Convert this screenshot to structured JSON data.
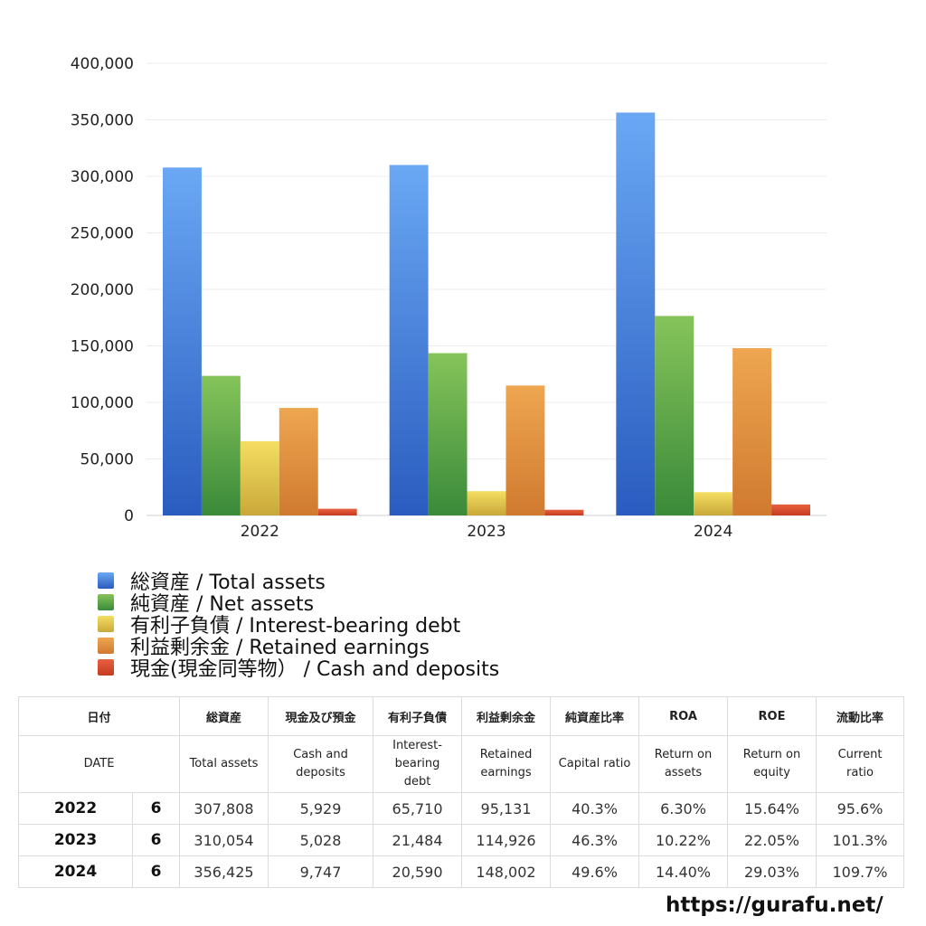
{
  "chart_data": {
    "type": "bar",
    "categories": [
      "2022",
      "2023",
      "2024"
    ],
    "ylim": [
      0,
      400000
    ],
    "yticks": [
      "0",
      "50,000",
      "100,000",
      "150,000",
      "200,000",
      "250,000",
      "300,000",
      "350,000",
      "400,000"
    ],
    "grid": true,
    "legend_position": "bottom",
    "series": [
      {
        "name": "総資産 / Total assets",
        "values": [
          307808,
          310054,
          356425
        ],
        "color": "#3f7fdd",
        "light": "#6aa8f4",
        "dark": "#2a5cbf"
      },
      {
        "name": "純資産 / Net assets",
        "values": [
          123500,
          143600,
          176500
        ],
        "color": "#5aa84a",
        "light": "#86c45a",
        "dark": "#3a8a3a"
      },
      {
        "name": "有利子負債 / Interest-bearing debt",
        "values": [
          65710,
          21484,
          20590
        ],
        "color": "#e5c84a",
        "light": "#f4de62",
        "dark": "#c9a83a"
      },
      {
        "name": "利益剰余金 / Retained earnings",
        "values": [
          95131,
          114926,
          148002
        ],
        "color": "#e0903a",
        "light": "#eea650",
        "dark": "#d07a30"
      },
      {
        "name": "現金(現金同等物）  /  Cash and deposits",
        "values": [
          5929,
          5028,
          9747
        ],
        "color": "#d84a2a",
        "light": "#e86040",
        "dark": "#c63a20"
      }
    ]
  },
  "table": {
    "headers_jp": [
      "日付",
      "総資産",
      "現金及び預金",
      "有利子負債",
      "利益剰余金",
      "純資産比率",
      "ROA",
      "ROE",
      "流動比率"
    ],
    "headers_en": [
      "DATE",
      "Total assets",
      "Cash and deposits",
      "Interest-bearing debt",
      "Retained earnings",
      "Capital ratio",
      "Return on assets",
      "Return on equity",
      "Current ratio"
    ],
    "rows": [
      {
        "year": "2022",
        "month": "6",
        "total_assets": "307,808",
        "cash": "5,929",
        "debt": "65,710",
        "retained": "95,131",
        "capital_ratio": "40.3%",
        "roa": "6.30%",
        "roe": "15.64%",
        "current_ratio": "95.6%"
      },
      {
        "year": "2023",
        "month": "6",
        "total_assets": "310,054",
        "cash": "5,028",
        "debt": "21,484",
        "retained": "114,926",
        "capital_ratio": "46.3%",
        "roa": "10.22%",
        "roe": "22.05%",
        "current_ratio": "101.3%"
      },
      {
        "year": "2024",
        "month": "6",
        "total_assets": "356,425",
        "cash": "9,747",
        "debt": "20,590",
        "retained": "148,002",
        "capital_ratio": "49.6%",
        "roa": "14.40%",
        "roe": "29.03%",
        "current_ratio": "109.7%"
      }
    ]
  },
  "footer": {
    "url": "https://gurafu.net/"
  }
}
